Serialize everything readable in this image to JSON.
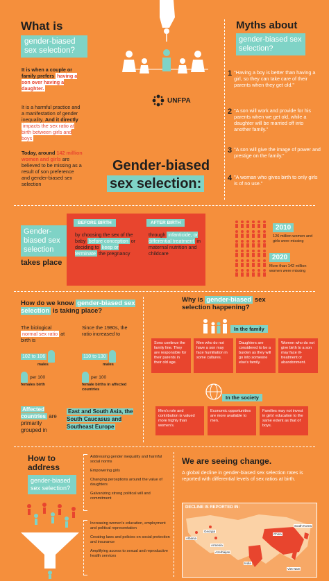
{
  "intro": {
    "title": "What is",
    "title_box": "gender-biased sex selection?",
    "p1_a": "It is when a couple or family prefers",
    "p1_hl": "having a son over having a daughter.",
    "p2_a": "It is a harmful practice and a manifestation of gender inequality.",
    "p2_b": "And it directly",
    "p2_hl": "impacts the sex ratio at birth between girls and boys",
    "p3_a": "Today, around",
    "p3_num": "142 million women and girls",
    "p3_b": "are believed to be missing as a result of son preference and gender-biased sex selection"
  },
  "logo": {
    "text": "UNFPA"
  },
  "center_title": {
    "line1": "Gender-biased",
    "line2": "sex selection:"
  },
  "myths": {
    "title": "Myths about",
    "title_box": "gender-biased sex selection?",
    "items": [
      {
        "n": "1",
        "text": "\"Having a boy is better than having a girl, so they can take care of their parents when they get old.\""
      },
      {
        "n": "2",
        "text": "\"A son will work and provide for his parents when we get old, while a daughter will be married off into another family.\""
      },
      {
        "n": "3",
        "text": "\"A son will give the image of power and prestige on the family.\""
      },
      {
        "n": "4",
        "text": "\"A woman who gives birth to only girls is of no use.\""
      }
    ]
  },
  "takes_place": {
    "title_box": "Gender-biased sex selection",
    "title_rest": "takes place",
    "before_label": "BEFORE BIRTH",
    "before_text_a": "by choosing the sex of the baby",
    "before_hl": "before conception",
    "before_text_b": "or deciding to",
    "before_hl2": "keep or terminate",
    "before_text_c": "the pregnancy",
    "after_label": "AFTER BIRTH",
    "after_text_a": "through",
    "after_hl": "infanticide, or differential treatment",
    "after_text_b": "in maternal nutrition and childcare",
    "y2010": "2010",
    "y2010_text": "126 million women and girls were missing",
    "y2020": "2020",
    "y2020_text": "More than 142 million women were missing"
  },
  "know": {
    "title_a": "How do we know",
    "title_b": "gender-biased sex selection",
    "title_c": "is taking place?",
    "normal_a": "The biological",
    "normal_hl": "normal sex ratio",
    "normal_b": "at birth is",
    "normal_ratio_a": "102",
    "normal_ratio_to": "to",
    "normal_ratio_b": "106",
    "normal_males": "males",
    "normal_per": "per",
    "normal_100": "100",
    "normal_females": "females birth",
    "since_a": "Since the 1980s, the ratio",
    "since_b": "increased to",
    "since_ratio_a": "110",
    "since_ratio_to": "to",
    "since_ratio_b": "130",
    "since_males": "males",
    "since_per": "per",
    "since_100": "100",
    "since_females": "female births in affected countries",
    "affected_hl": "Affected countries",
    "affected_rest": "are primarily grouped in",
    "regions": "East and South Asia, the South Caucasus and Southeast Europe"
  },
  "why": {
    "title_a": "Why is",
    "title_hl": "gender-biased",
    "title_b": "sex selection happening?",
    "family_label": "In the family",
    "family_boxes": [
      "Sons continue the family line. They are responsible for their parents in their old age.",
      "Men who do not have a son may face humiliation in some cultures.",
      "Daughters are considered to be a burden as they will go into someone else's family.",
      "Women who do not give birth to a son may face ill-treatment or abandonment."
    ],
    "society_label": "In the society",
    "society_boxes": [
      "Men's role and contribution is valued more highly than women's.",
      "Economic opportunities are more available to men.",
      "Families may not invest in girls' education to the same extent as that of boys."
    ]
  },
  "address": {
    "title": "How to address",
    "title_box": "gender-biased sex selection?",
    "list1": [
      "Addressing gender inequality and harmful social norms",
      "Empowering girls",
      "Changing perceptions around the value of daughters",
      "Galvanizing strong political will and commitment"
    ],
    "list2": [
      "Increasing women's education, employment and political representation",
      "Creating laws and policies on social protection and insurance",
      "Amplifying access to sexual and reproductive health services"
    ]
  },
  "change": {
    "title": "We are seeing change.",
    "text": "A global decline in gender-biased sex selection rates is reported with differential levels of sex ratios at birth.",
    "map_label": "DECLINE IS REPORTED IN:",
    "places": [
      "Albania",
      "Armenia",
      "Azerbaijan",
      "Georgia",
      "China",
      "India",
      "Viet Nam",
      "South Korea"
    ]
  },
  "colors": {
    "bg": "#f58f3c",
    "accent": "#e8452e",
    "mint": "#7fd3c6"
  }
}
